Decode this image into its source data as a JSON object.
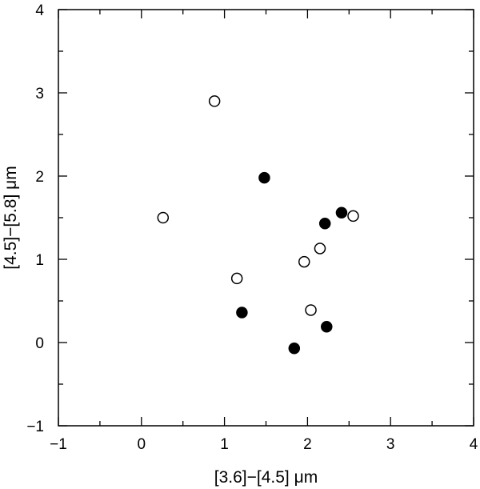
{
  "chart_data": {
    "type": "scatter",
    "title": "",
    "xlabel": "[3.6]−[4.5] μm",
    "ylabel": "[4.5]−[5.8] μm",
    "xlim": [
      -1,
      4
    ],
    "ylim": [
      -1,
      4
    ],
    "xticks": [
      -1,
      0,
      1,
      2,
      3,
      4
    ],
    "yticks": [
      -1,
      0,
      1,
      2,
      3,
      4
    ],
    "xtick_labels": [
      "−1",
      "0",
      "1",
      "2",
      "3",
      "4"
    ],
    "ytick_labels": [
      "−1",
      "0",
      "1",
      "2",
      "3",
      "4"
    ],
    "minor_tick_step": 0.5,
    "grid": false,
    "series": [
      {
        "marker": "open-circle",
        "color": "#000000",
        "x": [
          0.88,
          0.26,
          2.55,
          2.15,
          1.96,
          1.15,
          2.04
        ],
        "y": [
          2.9,
          1.5,
          1.52,
          1.13,
          0.97,
          0.77,
          0.39
        ]
      },
      {
        "marker": "filled-circle",
        "color": "#000000",
        "x": [
          1.48,
          2.41,
          2.21,
          1.21,
          2.23,
          1.84
        ],
        "y": [
          1.98,
          1.56,
          1.43,
          0.36,
          0.19,
          -0.07
        ]
      }
    ]
  }
}
